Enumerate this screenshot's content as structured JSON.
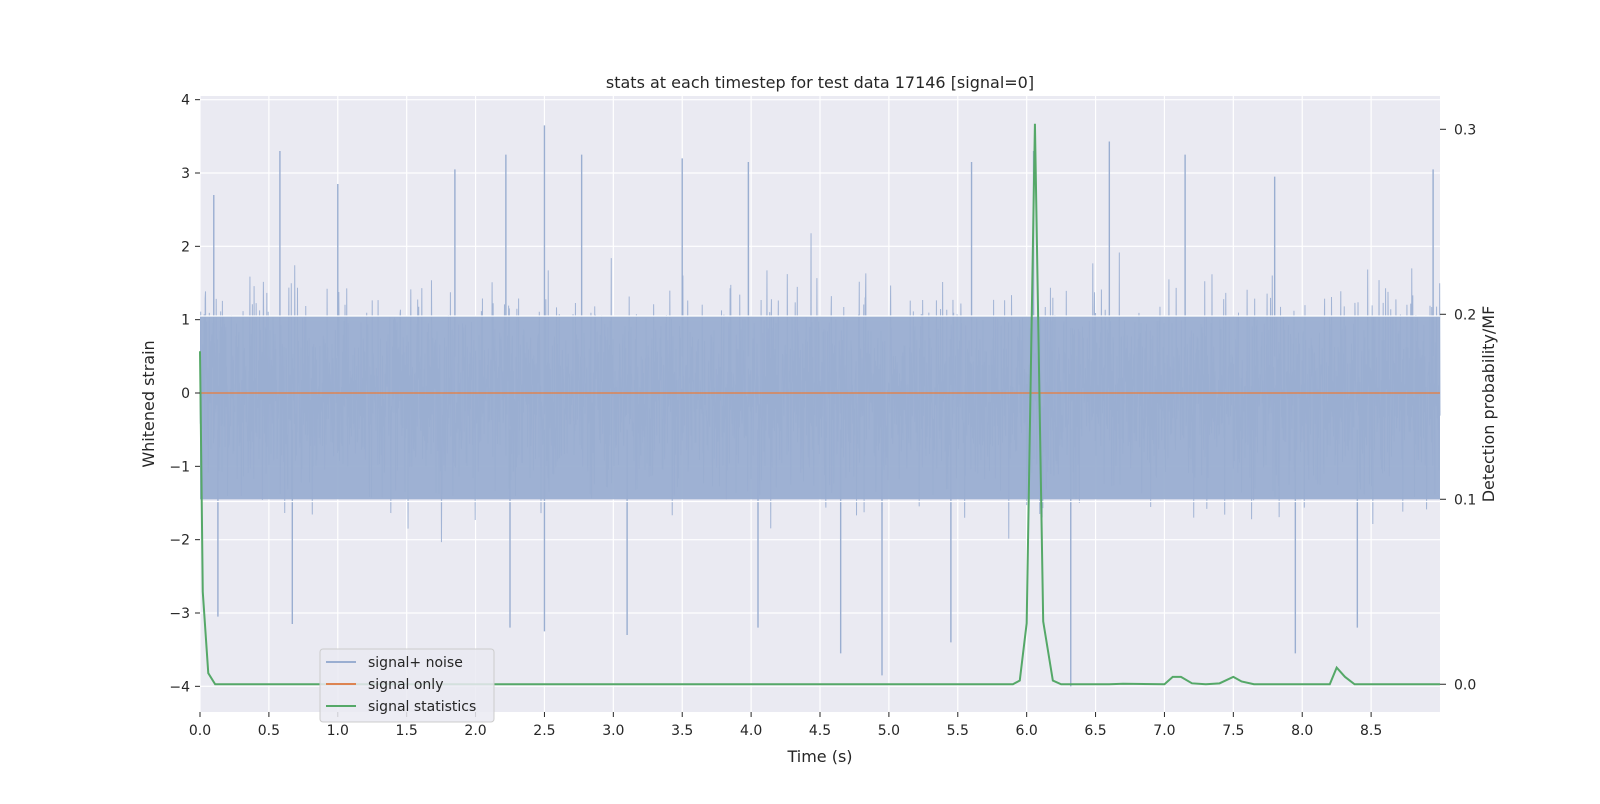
{
  "chart_data": {
    "type": "line",
    "title": "stats at each timestep for test data 17146 [signal=0]",
    "xlabel": "Time (s)",
    "ylabel": "Whitened strain",
    "y2label": "Detection probability/MF",
    "xlim": [
      0.0,
      9.0
    ],
    "ylim": [
      -4.35,
      4.05
    ],
    "y2lim": [
      -0.015,
      0.318
    ],
    "x_ticks": [
      0.0,
      0.5,
      1.0,
      1.5,
      2.0,
      2.5,
      3.0,
      3.5,
      4.0,
      4.5,
      5.0,
      5.5,
      6.0,
      6.5,
      7.0,
      7.5,
      8.0,
      8.5
    ],
    "x_tick_labels": [
      "0.0",
      "0.5",
      "1.0",
      "1.5",
      "2.0",
      "2.5",
      "3.0",
      "3.5",
      "4.0",
      "4.5",
      "5.0",
      "5.5",
      "6.0",
      "6.5",
      "7.0",
      "7.5",
      "8.0",
      "8.5"
    ],
    "y_ticks": [
      -4,
      -3,
      -2,
      -1,
      0,
      1,
      2,
      3,
      4
    ],
    "y_tick_labels": [
      "−4",
      "−3",
      "−2",
      "−1",
      "0",
      "1",
      "2",
      "3",
      "4"
    ],
    "y2_ticks": [
      0.0,
      0.1,
      0.2,
      0.3
    ],
    "y2_tick_labels": [
      "0.0",
      "0.1",
      "0.2",
      "0.3"
    ],
    "grid": true,
    "legend_position": "lower-left",
    "colors": {
      "signal_noise": "#9aaed1",
      "signal_only": "#dd8452",
      "signal_statistics": "#55a868",
      "plot_bg": "#eaeaf2",
      "grid": "#ffffff"
    },
    "series": [
      {
        "name": "signal+ noise",
        "axis": "left",
        "style": "dense-noise",
        "envelope_max": 3.65,
        "envelope_min": -4.0,
        "peaks": [
          [
            0.1,
            2.7
          ],
          [
            0.58,
            3.3
          ],
          [
            1.0,
            2.85
          ],
          [
            1.85,
            3.05
          ],
          [
            2.22,
            3.25
          ],
          [
            2.5,
            3.65
          ],
          [
            2.77,
            3.25
          ],
          [
            3.5,
            3.2
          ],
          [
            3.98,
            3.15
          ],
          [
            5.6,
            3.15
          ],
          [
            6.05,
            3.3
          ],
          [
            6.6,
            3.43
          ],
          [
            7.15,
            3.25
          ],
          [
            7.8,
            2.95
          ],
          [
            8.95,
            3.05
          ]
        ],
        "troughs": [
          [
            0.13,
            -3.05
          ],
          [
            0.67,
            -3.15
          ],
          [
            2.25,
            -3.2
          ],
          [
            2.5,
            -3.25
          ],
          [
            3.1,
            -3.3
          ],
          [
            4.05,
            -3.2
          ],
          [
            4.65,
            -3.55
          ],
          [
            4.95,
            -3.85
          ],
          [
            5.45,
            -3.4
          ],
          [
            6.32,
            -4.0
          ],
          [
            7.95,
            -3.55
          ],
          [
            8.4,
            -3.2
          ]
        ]
      },
      {
        "name": "signal only",
        "axis": "left",
        "x": [
          0.0,
          9.0
        ],
        "y": [
          0.0,
          0.0
        ]
      },
      {
        "name": "signal statistics",
        "axis": "right",
        "x": [
          0.0,
          0.02,
          0.06,
          0.11,
          0.3,
          1.0,
          2.0,
          3.0,
          4.0,
          5.0,
          5.5,
          5.9,
          5.95,
          6.0,
          6.06,
          6.12,
          6.19,
          6.25,
          6.3,
          6.6,
          6.7,
          7.0,
          7.06,
          7.12,
          7.2,
          7.3,
          7.4,
          7.5,
          7.56,
          7.65,
          8.0,
          8.2,
          8.25,
          8.31,
          8.38,
          9.0
        ],
        "y": [
          0.18,
          0.05,
          0.006,
          0.0,
          0.0,
          0.0,
          0.0,
          0.0,
          0.0,
          0.0,
          0.0,
          0.0,
          0.002,
          0.033,
          0.303,
          0.034,
          0.002,
          0.0,
          0.0,
          0.0,
          0.0003,
          0.0,
          0.004,
          0.004,
          0.0005,
          0.0,
          0.0005,
          0.004,
          0.0015,
          0.0,
          0.0,
          0.0,
          0.009,
          0.004,
          0.0,
          0.0
        ]
      }
    ]
  }
}
